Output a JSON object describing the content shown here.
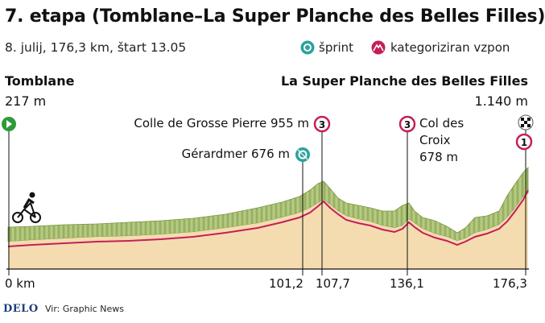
{
  "title": "7. etapa (Tomblane–La Super Planche des Belles Filles)",
  "subtitle": "8. julij, 176,3 km, štart 13.05",
  "legend": {
    "sprint_label": "šprint",
    "climb_label": "kategoriziran vzpon",
    "sprint_icon": "sprint-icon",
    "climb_icon": "categorized-climb-icon"
  },
  "start": {
    "name": "Tomblane",
    "altitude": "217 m"
  },
  "finish": {
    "name": "La Super Planche des Belles Filles",
    "altitude": "1.140 m"
  },
  "points": {
    "colle": {
      "label": "Colle de Grosse Pierre 955 m",
      "category": "3"
    },
    "gerardmer": {
      "label": "Gérardmer 676 m"
    },
    "croix": {
      "line1": "Col des",
      "line2": "Croix",
      "line3": "678 m",
      "category": "3"
    },
    "finish_climb": {
      "category": "1"
    }
  },
  "km_labels": [
    "0 km",
    "101,2",
    "107,7",
    "136,1",
    "176,3"
  ],
  "footer": {
    "logo": "DELO",
    "source": "Vir: Graphic News"
  },
  "colors": {
    "profile_fill": "#f4dcb0",
    "ridge_fill": "#9fb86a",
    "route_line": "#c41e5a",
    "climb_badge": "#c41e5a",
    "sprint_badge": "#2aa39b",
    "start_badge": "#2e9a3a"
  },
  "chart_data": {
    "type": "area",
    "xlabel": "",
    "ylabel": "",
    "distance_km": [
      0,
      101.2,
      107.7,
      136.1,
      176.3
    ],
    "altitude_m": [
      217,
      676,
      955,
      678,
      1140
    ],
    "point_names": [
      "Tomblane",
      "Gérardmer",
      "Colle de Grosse Pierre",
      "Col des Croix",
      "La Super Planche des Belles Filles"
    ]
  }
}
